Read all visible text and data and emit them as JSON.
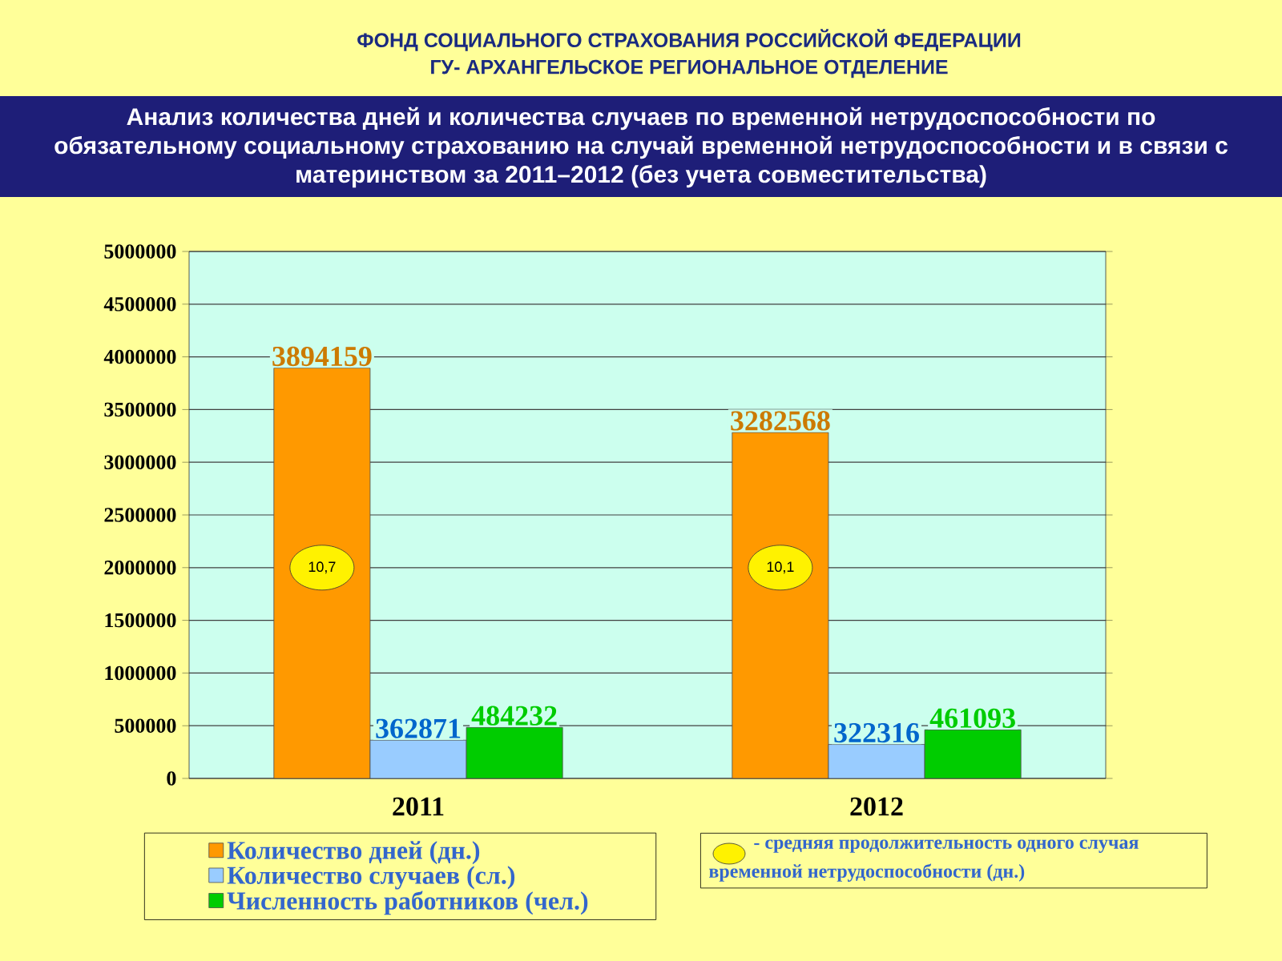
{
  "chart_data": {
    "type": "bar",
    "title": "Анализ количества дней и количества случаев по временной нетрудоспособности по обязательному социальному страхованию на случай временной нетрудоспособности и в связи с материнством за 2011–2012 (без учета совместительства)",
    "annotations": [
      "ФОНД СОЦИАЛЬНОГО СТРАХОВАНИЯ РОССИЙСКОЙ ФЕДЕРАЦИИ",
      "ГУ- АРХАНГЕЛЬСКОЕ РЕГИОНАЛЬНОЕ ОТДЕЛЕНИЕ",
      "- средняя продолжительность одного случая временной нетрудоспособности (дн.)",
      "10,7",
      "10,1"
    ],
    "categories": [
      "2011",
      "2012"
    ],
    "series": [
      {
        "name": "Количество дней (дн.)",
        "color": "#ff9900",
        "values": [
          3894159,
          3282568
        ]
      },
      {
        "name": "Количество случаев (сл.)",
        "color": "#99ccff",
        "values": [
          362871,
          322316
        ]
      },
      {
        "name": "Численность работников (чел.)",
        "color": "#00cc00",
        "values": [
          484232,
          461093
        ]
      }
    ],
    "ylim": [
      0,
      5000000
    ],
    "yticks": [
      0,
      500000,
      1000000,
      1500000,
      2000000,
      2500000,
      3000000,
      3500000,
      4000000,
      4500000,
      5000000
    ],
    "grid": "y",
    "legend": "bottom left",
    "data_labels": true
  }
}
